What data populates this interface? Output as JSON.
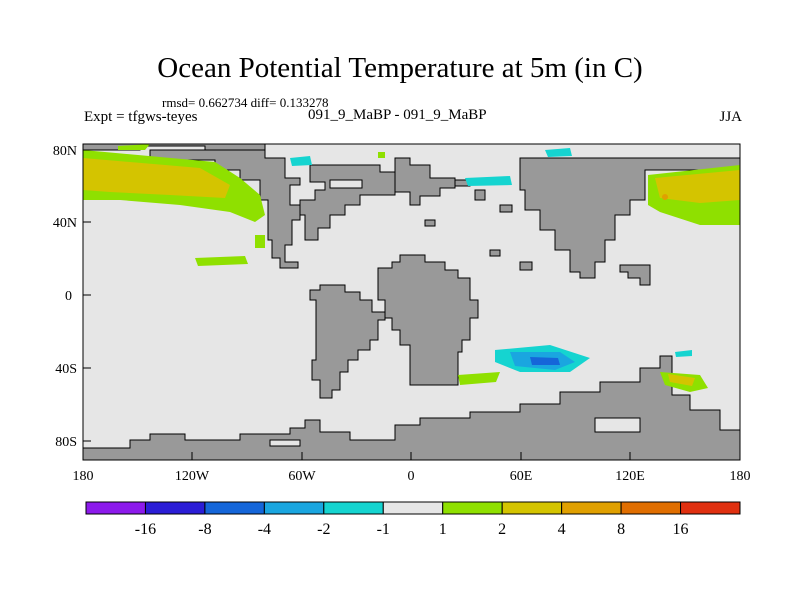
{
  "title": "Ocean Potential Temperature at 5m (in C)",
  "stats": "rmsd= 0.662734 diff= 0.133278",
  "experiment": "Expt = tfgws-teyes",
  "cases": "091_9_MaBP - 091_9_MaBP",
  "season": "JJA",
  "map": {
    "lon_ticks": [
      "180",
      "120W",
      "60W",
      "0",
      "60E",
      "120E",
      "180"
    ],
    "lat_ticks": [
      "80N",
      "40N",
      "0",
      "40S",
      "80S"
    ],
    "land_color": "#999999",
    "ocean_color": "#e6e6e6"
  },
  "colorbar": {
    "colors": [
      "#8c1aeb",
      "#2b1dd6",
      "#1566d9",
      "#1aa6e0",
      "#15d4d0",
      "#e6e6e6",
      "#8fe000",
      "#d4c400",
      "#e0a000",
      "#e06e00",
      "#e03010"
    ],
    "labels": [
      "-16",
      "-8",
      "-4",
      "-2",
      "-1",
      "1",
      "2",
      "4",
      "8",
      "16"
    ]
  }
}
